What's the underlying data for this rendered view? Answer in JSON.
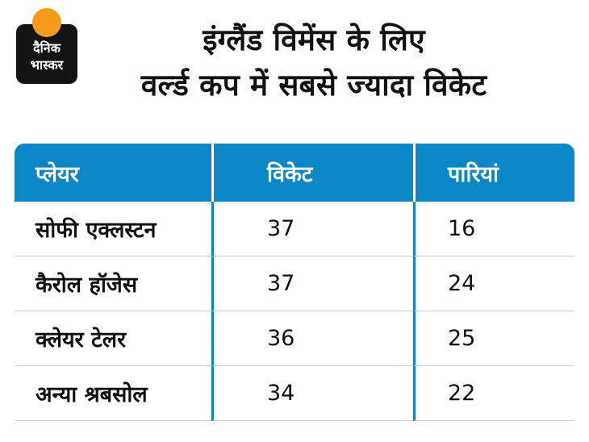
{
  "colors": {
    "header_blue": "#0b87c8",
    "divider_blue": "#0b87c8",
    "row_divider": "#c9ced3",
    "logo_orange": "#f49b1b",
    "logo_black": "#141414",
    "text_black": "#111111"
  },
  "logo": {
    "line1": "दैनिक",
    "line2": "भास्कर"
  },
  "title": {
    "line1": "इंग्लैंड विमेंस के लिए",
    "line2": "वर्ल्ड कप में सबसे ज्यादा विकेट"
  },
  "chart_data": {
    "type": "table",
    "title": "इंग्लैंड विमेंस के लिए वर्ल्ड कप में सबसे ज्यादा विकेट",
    "columns": [
      "प्लेयर",
      "विकेट",
      "पारियां"
    ],
    "rows": [
      [
        "सोफी एक्लस्टन",
        37,
        16
      ],
      [
        "कैरोल हॉजेस",
        37,
        24
      ],
      [
        "क्लेयर टेलर",
        36,
        25
      ],
      [
        "अन्या श्रबसोल",
        34,
        22
      ]
    ]
  }
}
